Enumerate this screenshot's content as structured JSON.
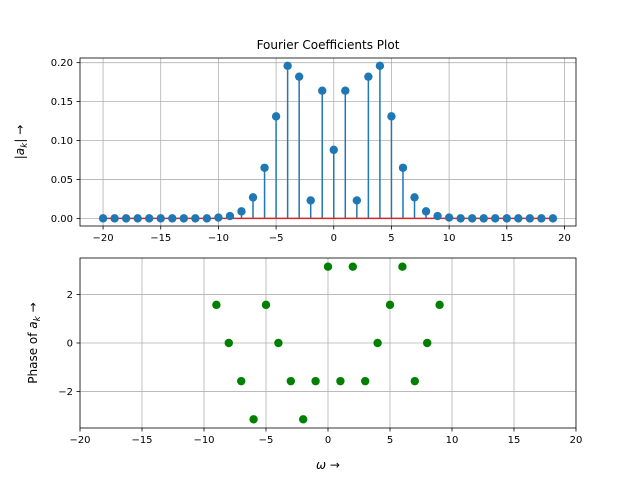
{
  "chart_data": [
    {
      "type": "stem",
      "title": "Fourier Coefficients Plot",
      "ylabel": "|a_k| →",
      "xlim": [
        -22.0,
        21.0
      ],
      "ylim": [
        -0.0098,
        0.206
      ],
      "xticks": [
        -20,
        -15,
        -10,
        -5,
        0,
        5,
        10,
        15,
        20
      ],
      "yticks": [
        0.0,
        0.05,
        0.1,
        0.15,
        0.2
      ],
      "ytick_labels": [
        "0.00",
        "0.05",
        "0.10",
        "0.15",
        "0.20"
      ],
      "grid": true,
      "marker_color": "#1f77b4",
      "stem_color": "#1f77b4",
      "baseline_color": "#d62728",
      "x": [
        -20,
        -19,
        -18,
        -17,
        -16,
        -15,
        -14,
        -13,
        -12,
        -11,
        -10,
        -9,
        -8,
        -7,
        -6,
        -5,
        -4,
        -3,
        -2,
        -1,
        0,
        1,
        2,
        3,
        4,
        5,
        6,
        7,
        8,
        9,
        10,
        11,
        12,
        13,
        14,
        15,
        16,
        17,
        18,
        19
      ],
      "values": [
        0.0,
        0.0,
        0.0,
        0.0,
        0.0,
        0.0,
        0.0,
        0.0,
        0.0,
        0.0,
        0.001,
        0.003,
        0.009,
        0.027,
        0.065,
        0.131,
        0.196,
        0.182,
        0.023,
        0.164,
        0.088,
        0.164,
        0.023,
        0.182,
        0.196,
        0.131,
        0.065,
        0.027,
        0.009,
        0.003,
        0.001,
        0.0,
        0.0,
        0.0,
        0.0,
        0.0,
        0.0,
        0.0,
        0.0,
        0.0
      ]
    },
    {
      "type": "scatter",
      "xlabel": "ω →",
      "ylabel": "Phase of a_k →",
      "xlim": [
        -20,
        20
      ],
      "ylim": [
        -3.5,
        3.5
      ],
      "xticks": [
        -20,
        -15,
        -10,
        -5,
        0,
        5,
        10,
        15,
        20
      ],
      "yticks": [
        -2,
        0,
        2
      ],
      "grid": true,
      "marker_color": "#008000",
      "x": [
        -9,
        -8,
        -7,
        -6,
        -5,
        -4,
        -3,
        -2,
        -1,
        0,
        1,
        2,
        3,
        4,
        5,
        6,
        7,
        8,
        9
      ],
      "values": [
        1.571,
        0.0,
        -1.571,
        -3.1416,
        1.571,
        0.0,
        -1.571,
        -3.1416,
        -1.571,
        3.1416,
        -1.571,
        3.1416,
        -1.571,
        0.0,
        1.571,
        3.1416,
        -1.571,
        0.0,
        1.571
      ]
    }
  ]
}
